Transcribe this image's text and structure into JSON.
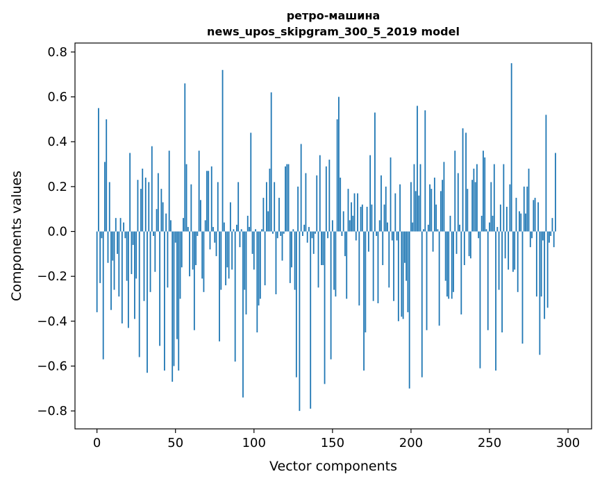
{
  "chart_data": {
    "type": "bar",
    "title_line1": "ретро-машина",
    "title_line2": "news_upos_skipgram_300_5_2019 model",
    "xlabel": "Vector components",
    "ylabel": "Components values",
    "xlim": [
      -14,
      315
    ],
    "ylim": [
      -0.88,
      0.84
    ],
    "xticks": [
      0,
      50,
      100,
      150,
      200,
      250,
      300
    ],
    "xtick_labels": [
      "0",
      "50",
      "100",
      "150",
      "200",
      "250",
      "300"
    ],
    "yticks": [
      -0.8,
      -0.6,
      -0.4,
      -0.2,
      0.0,
      0.2,
      0.4,
      0.6,
      0.8
    ],
    "ytick_labels": [
      "−0.8",
      "−0.6",
      "−0.4",
      "−0.2",
      "0.0",
      "0.2",
      "0.4",
      "0.6",
      "0.8"
    ],
    "bar_color": "#1f77b4",
    "grid": false,
    "values": [
      -0.36,
      0.55,
      -0.23,
      -0.03,
      -0.57,
      0.31,
      0.5,
      -0.14,
      0.22,
      -0.35,
      -0.13,
      -0.26,
      0.06,
      -0.1,
      -0.29,
      0.06,
      -0.41,
      0.04,
      -0.03,
      -0.22,
      -0.43,
      0.35,
      -0.19,
      -0.06,
      -0.39,
      -0.21,
      0.23,
      -0.56,
      0.19,
      0.28,
      -0.31,
      0.24,
      -0.63,
      0.22,
      -0.27,
      0.38,
      -0.02,
      -0.18,
      0.1,
      0.26,
      -0.51,
      0.19,
      0.13,
      -0.62,
      0.08,
      -0.25,
      0.36,
      0.05,
      -0.67,
      -0.6,
      -0.05,
      -0.48,
      -0.62,
      -0.3,
      -0.16,
      0.06,
      0.66,
      0.3,
      0.02,
      -0.2,
      0.21,
      -0.17,
      -0.44,
      -0.15,
      -0.02,
      0.36,
      0.14,
      -0.21,
      -0.27,
      0.05,
      0.27,
      0.27,
      -0.08,
      0.29,
      0.02,
      -0.05,
      -0.11,
      0.22,
      -0.49,
      -0.26,
      0.72,
      0.04,
      -0.24,
      -0.16,
      -0.21,
      0.13,
      -0.17,
      0.01,
      -0.58,
      0.03,
      0.22,
      -0.07,
      0.01,
      -0.74,
      -0.26,
      -0.37,
      0.07,
      0.02,
      0.44,
      -0.1,
      -0.17,
      0.01,
      -0.45,
      -0.33,
      -0.3,
      0.01,
      0.15,
      -0.24,
      0.22,
      0.09,
      0.28,
      0.62,
      -0.01,
      0.22,
      -0.28,
      -0.03,
      0.15,
      -0.02,
      -0.13,
      -0.01,
      0.29,
      0.3,
      0.3,
      -0.23,
      -0.16,
      0.01,
      -0.26,
      -0.65,
      0.2,
      -0.8,
      0.39,
      -0.02,
      0.03,
      0.26,
      -0.05,
      0.02,
      -0.79,
      -0.03,
      -0.1,
      -0.01,
      0.25,
      -0.25,
      0.34,
      -0.15,
      -0.15,
      -0.68,
      0.29,
      -0.03,
      0.32,
      -0.57,
      0.05,
      -0.26,
      -0.29,
      0.5,
      0.6,
      0.24,
      -0.02,
      0.09,
      -0.11,
      -0.3,
      0.19,
      0.05,
      0.13,
      0.07,
      0.17,
      -0.04,
      0.17,
      -0.33,
      0.11,
      0.12,
      -0.62,
      -0.45,
      0.11,
      -0.09,
      0.34,
      0.12,
      -0.31,
      0.53,
      -0.02,
      -0.32,
      0.05,
      0.25,
      -0.15,
      0.12,
      0.2,
      0.04,
      -0.25,
      0.33,
      -0.04,
      -0.31,
      0.17,
      -0.04,
      -0.4,
      0.21,
      -0.38,
      -0.39,
      -0.14,
      -0.22,
      -0.36,
      -0.7,
      0.22,
      0.04,
      0.3,
      0.18,
      0.56,
      0.16,
      0.3,
      -0.65,
      0.01,
      0.54,
      -0.44,
      0.03,
      0.21,
      0.19,
      -0.09,
      0.24,
      0.12,
      0.01,
      -0.42,
      0.18,
      0.23,
      0.31,
      -0.22,
      -0.29,
      -0.3,
      0.07,
      -0.3,
      -0.27,
      0.36,
      -0.1,
      0.26,
      0.03,
      -0.37,
      0.46,
      -0.15,
      0.44,
      0.19,
      -0.11,
      -0.12,
      0.23,
      0.28,
      0.22,
      0.3,
      -0.03,
      -0.61,
      0.07,
      0.36,
      0.33,
      0.01,
      -0.44,
      0.04,
      0.22,
      0.07,
      0.3,
      -0.62,
      0.02,
      -0.26,
      0.12,
      -0.45,
      0.3,
      -0.12,
      0.11,
      -0.17,
      0.21,
      0.75,
      -0.18,
      -0.17,
      0.15,
      -0.27,
      0.09,
      0.08,
      -0.5,
      0.2,
      0.08,
      0.2,
      0.28,
      -0.07,
      -0.03,
      0.14,
      0.15,
      -0.29,
      0.13,
      -0.55,
      -0.29,
      -0.04,
      -0.39,
      0.52,
      -0.34,
      -0.05,
      -0.02,
      0.06,
      -0.07,
      0.35
    ]
  }
}
